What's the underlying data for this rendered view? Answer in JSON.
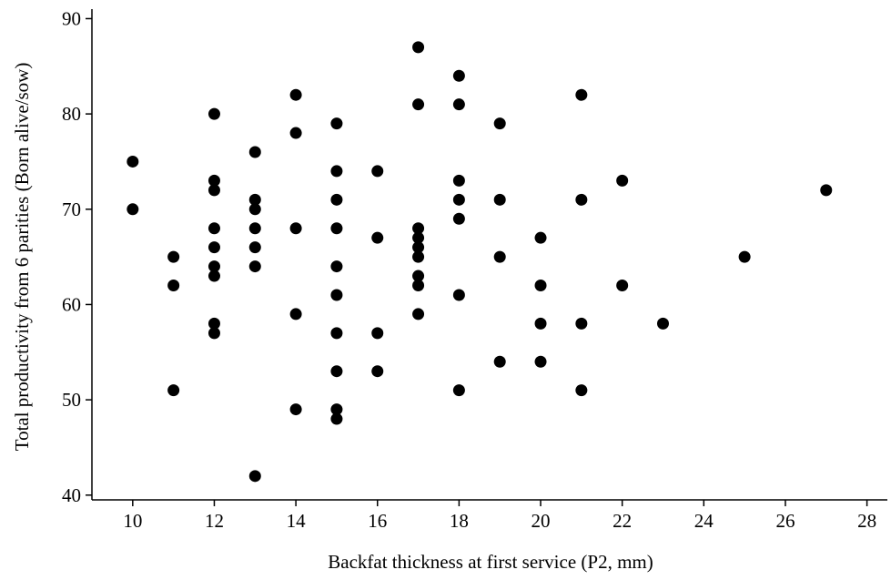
{
  "chart_data": {
    "type": "scatter",
    "title": "",
    "xlabel": "Backfat thickness at first service (P2, mm)",
    "ylabel": "Total productivity from 6 parities (Born alive/sow)",
    "xlim": [
      9,
      28.5
    ],
    "ylim": [
      39.5,
      91
    ],
    "xticks": [
      10,
      12,
      14,
      16,
      18,
      20,
      22,
      24,
      26,
      28
    ],
    "yticks": [
      40,
      50,
      60,
      70,
      80,
      90
    ],
    "grid": false,
    "legend": "none",
    "marker_color": "#000000",
    "points": [
      {
        "x": 10,
        "y": 75
      },
      {
        "x": 10,
        "y": 70
      },
      {
        "x": 11,
        "y": 65
      },
      {
        "x": 11,
        "y": 62
      },
      {
        "x": 11,
        "y": 51
      },
      {
        "x": 12,
        "y": 80
      },
      {
        "x": 12,
        "y": 73
      },
      {
        "x": 12,
        "y": 72
      },
      {
        "x": 12,
        "y": 68
      },
      {
        "x": 12,
        "y": 66
      },
      {
        "x": 12,
        "y": 64
      },
      {
        "x": 12,
        "y": 63
      },
      {
        "x": 12,
        "y": 58
      },
      {
        "x": 12,
        "y": 57
      },
      {
        "x": 13,
        "y": 76
      },
      {
        "x": 13,
        "y": 71
      },
      {
        "x": 13,
        "y": 70
      },
      {
        "x": 13,
        "y": 68
      },
      {
        "x": 13,
        "y": 66
      },
      {
        "x": 13,
        "y": 64
      },
      {
        "x": 13,
        "y": 42
      },
      {
        "x": 14,
        "y": 82
      },
      {
        "x": 14,
        "y": 78
      },
      {
        "x": 14,
        "y": 68
      },
      {
        "x": 14,
        "y": 59
      },
      {
        "x": 14,
        "y": 49
      },
      {
        "x": 15,
        "y": 79
      },
      {
        "x": 15,
        "y": 74
      },
      {
        "x": 15,
        "y": 71
      },
      {
        "x": 15,
        "y": 68
      },
      {
        "x": 15,
        "y": 64
      },
      {
        "x": 15,
        "y": 61
      },
      {
        "x": 15,
        "y": 57
      },
      {
        "x": 15,
        "y": 53
      },
      {
        "x": 15,
        "y": 49
      },
      {
        "x": 15,
        "y": 48
      },
      {
        "x": 16,
        "y": 74
      },
      {
        "x": 16,
        "y": 67
      },
      {
        "x": 16,
        "y": 57
      },
      {
        "x": 16,
        "y": 53
      },
      {
        "x": 17,
        "y": 87
      },
      {
        "x": 17,
        "y": 81
      },
      {
        "x": 17,
        "y": 68
      },
      {
        "x": 17,
        "y": 67
      },
      {
        "x": 17,
        "y": 66
      },
      {
        "x": 17,
        "y": 65
      },
      {
        "x": 17,
        "y": 63
      },
      {
        "x": 17,
        "y": 62
      },
      {
        "x": 17,
        "y": 59
      },
      {
        "x": 18,
        "y": 84
      },
      {
        "x": 18,
        "y": 81
      },
      {
        "x": 18,
        "y": 73
      },
      {
        "x": 18,
        "y": 71
      },
      {
        "x": 18,
        "y": 69
      },
      {
        "x": 18,
        "y": 61
      },
      {
        "x": 18,
        "y": 51
      },
      {
        "x": 19,
        "y": 79
      },
      {
        "x": 19,
        "y": 71
      },
      {
        "x": 19,
        "y": 65
      },
      {
        "x": 19,
        "y": 54
      },
      {
        "x": 20,
        "y": 67
      },
      {
        "x": 20,
        "y": 62
      },
      {
        "x": 20,
        "y": 58
      },
      {
        "x": 20,
        "y": 54
      },
      {
        "x": 21,
        "y": 82
      },
      {
        "x": 21,
        "y": 71
      },
      {
        "x": 21,
        "y": 58
      },
      {
        "x": 21,
        "y": 51
      },
      {
        "x": 22,
        "y": 73
      },
      {
        "x": 22,
        "y": 62
      },
      {
        "x": 23,
        "y": 58
      },
      {
        "x": 25,
        "y": 65
      },
      {
        "x": 27,
        "y": 72
      }
    ]
  }
}
